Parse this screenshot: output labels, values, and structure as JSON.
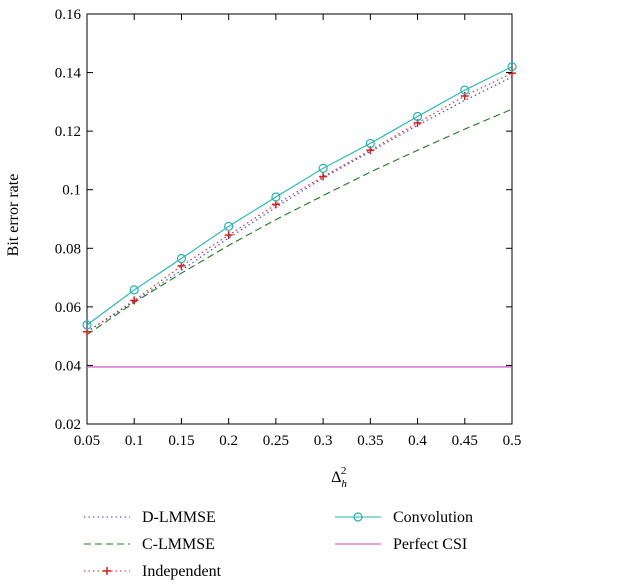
{
  "chart_data": {
    "type": "line",
    "title": "",
    "xlabel": "Δh²",
    "xlabel_parts": {
      "main": "Δ",
      "sup": "2",
      "sub": "h"
    },
    "ylabel": "Bit error rate",
    "xlim": [
      0.05,
      0.5
    ],
    "ylim": [
      0.02,
      0.16
    ],
    "grid": false,
    "legend_position": "below",
    "x": [
      0.05,
      0.1,
      0.15,
      0.2,
      0.25,
      0.3,
      0.35,
      0.4,
      0.45,
      0.5
    ],
    "x_tick_labels": [
      "0.05",
      "0.1",
      "0.15",
      "0.2",
      "0.25",
      "0.3",
      "0.35",
      "0.4",
      "0.45",
      "0.5"
    ],
    "y_ticks": [
      0.02,
      0.04,
      0.06,
      0.08,
      0.1,
      0.12,
      0.14,
      0.16
    ],
    "y_tick_labels": [
      "0.02",
      "0.04",
      "0.06",
      "0.08",
      "0.1",
      "0.12",
      "0.14",
      "0.16"
    ],
    "series": [
      {
        "name": "D-LMMSE",
        "color": "#3a3ad0",
        "style": "dotted",
        "marker": "none",
        "values": [
          0.0515,
          0.0618,
          0.0725,
          0.0835,
          0.094,
          0.104,
          0.113,
          0.122,
          0.1305,
          0.1385
        ]
      },
      {
        "name": "C-LMMSE",
        "color": "#1f7a1f",
        "style": "dashed",
        "marker": "none",
        "values": [
          0.0505,
          0.0615,
          0.0715,
          0.081,
          0.0898,
          0.098,
          0.106,
          0.1135,
          0.1207,
          0.1275
        ]
      },
      {
        "name": "Independent",
        "color": "#d42020",
        "style": "dotted",
        "marker": "plus",
        "values": [
          0.0515,
          0.0622,
          0.074,
          0.0845,
          0.095,
          0.1045,
          0.1135,
          0.1228,
          0.132,
          0.1398
        ]
      },
      {
        "name": "Convolution",
        "color": "#20b4b4",
        "style": "solid",
        "marker": "circle",
        "values": [
          0.0538,
          0.0658,
          0.0765,
          0.0875,
          0.0975,
          0.1073,
          0.1158,
          0.125,
          0.134,
          0.142
        ]
      },
      {
        "name": "Perfect CSI",
        "color": "#d040c8",
        "style": "solid",
        "marker": "none",
        "values": [
          0.0395,
          0.0395,
          0.0395,
          0.0395,
          0.0395,
          0.0395,
          0.0395,
          0.0395,
          0.0395,
          0.0395
        ]
      }
    ]
  }
}
